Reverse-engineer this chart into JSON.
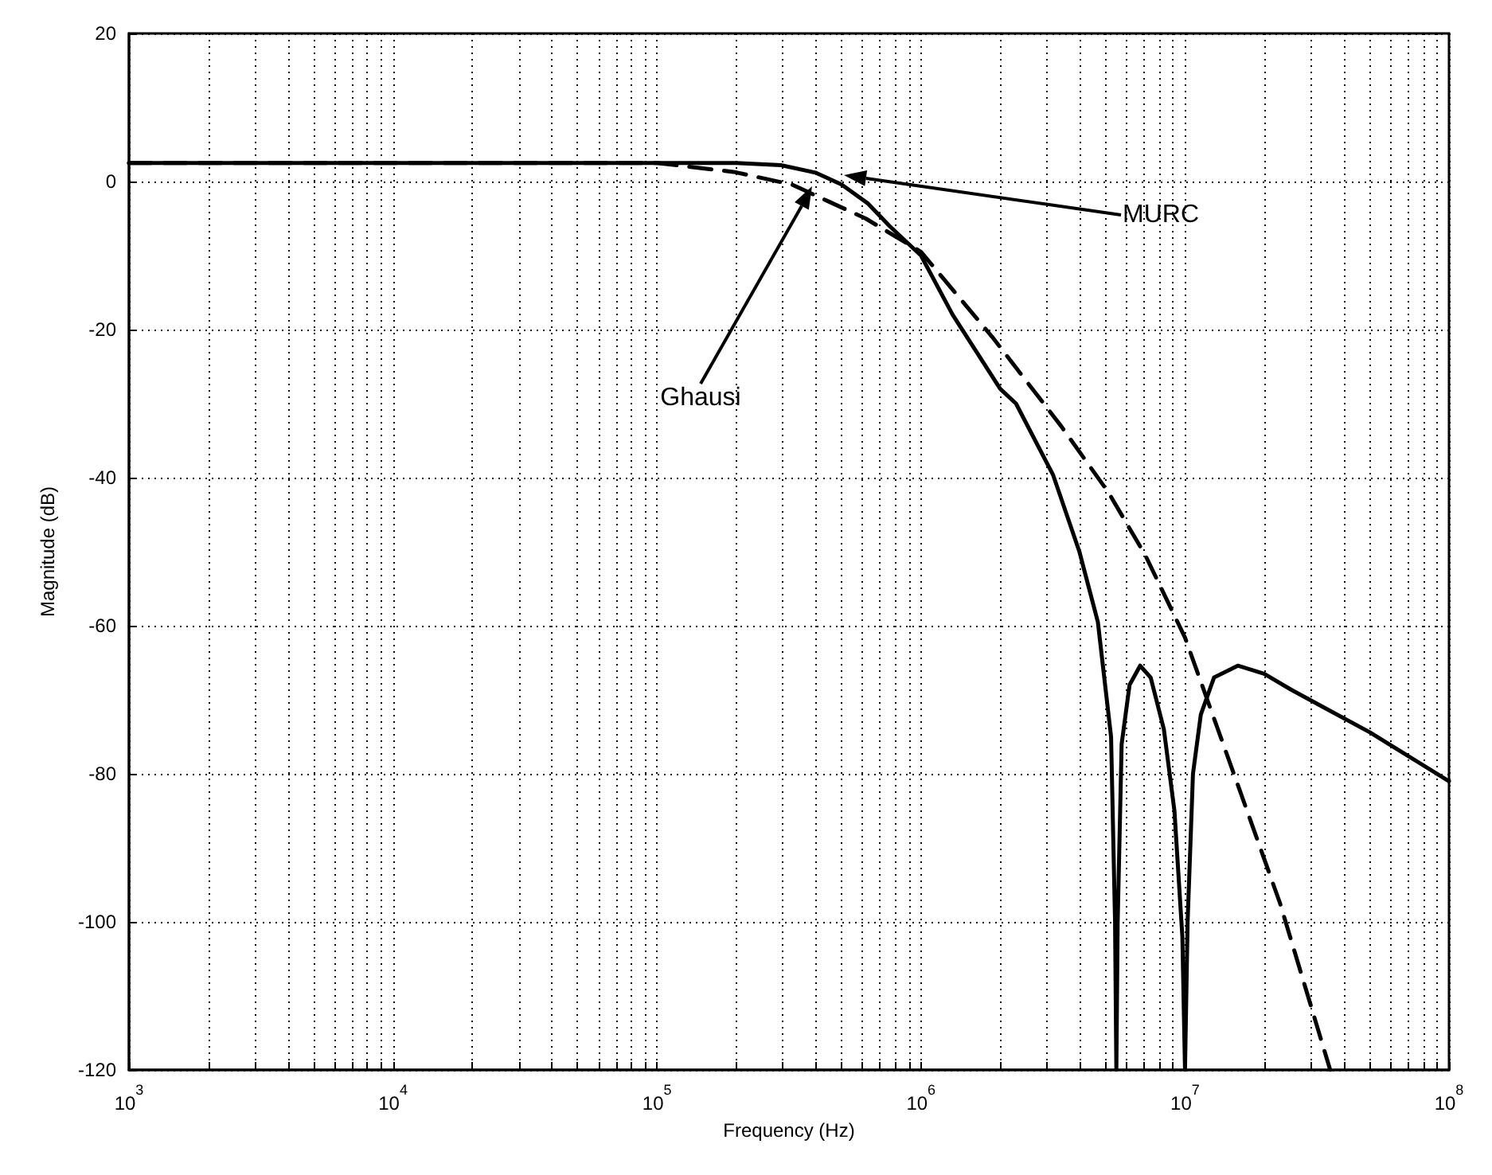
{
  "chart_data": {
    "type": "line",
    "xlabel": "Frequency (Hz)",
    "ylabel": "Magnitude (dB)",
    "log": "x",
    "grid": true,
    "marker": "none",
    "xlim": [
      1000,
      100000000
    ],
    "xticks": [
      {
        "value": 1000,
        "label": "10$^{3}$"
      },
      {
        "value": 2000,
        "label": null
      },
      {
        "value": 3000,
        "label": null
      },
      {
        "value": 4000,
        "label": null
      },
      {
        "value": 5000,
        "label": null
      },
      {
        "value": 6000,
        "label": null
      },
      {
        "value": 7000,
        "label": null
      },
      {
        "value": 8000,
        "label": null
      },
      {
        "value": 9000,
        "label": null
      },
      {
        "value": 10000,
        "label": "10$^{4}$"
      },
      {
        "value": 20000,
        "label": null
      },
      {
        "value": 30000,
        "label": null
      },
      {
        "value": 40000,
        "label": null
      },
      {
        "value": 50000,
        "label": null
      },
      {
        "value": 60000,
        "label": null
      },
      {
        "value": 70000,
        "label": null
      },
      {
        "value": 80000,
        "label": null
      },
      {
        "value": 90000,
        "label": null
      },
      {
        "value": 100000,
        "label": "10$^{5}$"
      },
      {
        "value": 200000,
        "label": null
      },
      {
        "value": 300000,
        "label": null
      },
      {
        "value": 400000,
        "label": null
      },
      {
        "value": 500000,
        "label": null
      },
      {
        "value": 600000,
        "label": null
      },
      {
        "value": 700000,
        "label": null
      },
      {
        "value": 800000,
        "label": null
      },
      {
        "value": 900000,
        "label": null
      },
      {
        "value": 1000000,
        "label": "10$^{6}$"
      },
      {
        "value": 2000000,
        "label": null
      },
      {
        "value": 3000000,
        "label": null
      },
      {
        "value": 4000000,
        "label": null
      },
      {
        "value": 5000000,
        "label": null
      },
      {
        "value": 6000000,
        "label": null
      },
      {
        "value": 7000000,
        "label": null
      },
      {
        "value": 8000000,
        "label": null
      },
      {
        "value": 9000000,
        "label": null
      },
      {
        "value": 10000000,
        "label": "10$^{7}$"
      },
      {
        "value": 20000000,
        "label": null
      },
      {
        "value": 30000000,
        "label": null
      },
      {
        "value": 40000000,
        "label": null
      },
      {
        "value": 50000000,
        "label": null
      },
      {
        "value": 60000000,
        "label": null
      },
      {
        "value": 70000000,
        "label": null
      },
      {
        "value": 80000000,
        "label": null
      },
      {
        "value": 90000000,
        "label": null
      },
      {
        "value": 100000000,
        "label": "10$^{8}$"
      }
    ],
    "ylim": [
      -120,
      20
    ],
    "yticks": [
      -120,
      -100,
      -80,
      -60,
      -40,
      -20,
      0,
      20
    ],
    "series": [
      {
        "color": "#000000",
        "line_style": "solid",
        "x": [
          1000,
          200000,
          295000,
          398000,
          500000,
          631000,
          759000,
          1000000,
          1318000,
          1995000,
          2291000,
          3162000,
          3981000,
          4677000,
          5248000,
          5433000,
          5495000,
          5559000,
          5754000,
          6166000,
          6761000,
          7413000,
          8318000,
          9120000,
          9772000,
          10000000,
          10230000,
          10720000,
          11480000,
          12880000,
          15850000,
          19950000,
          25120000,
          35480000,
          50120000,
          70790000,
          100000000
        ],
        "values": [
          2.5,
          2.5,
          2.2,
          1.2,
          -0.4,
          -3,
          -6,
          -10,
          -18,
          -28,
          -30,
          -39.6,
          -50,
          -59.5,
          -75,
          -100,
          -120,
          -100,
          -76,
          -68,
          -65.4,
          -67,
          -74,
          -85,
          -102,
          -120,
          -100,
          -80,
          -72,
          -67,
          -65.4,
          -66.5,
          -68.6,
          -71.5,
          -74.4,
          -77.7,
          -81
        ]
      },
      {
        "color": "#000000",
        "line_style": "dashed",
        "x": [
          1000,
          100000,
          195000,
          324000,
          447000,
          617000,
          1000000,
          1862000,
          3388000,
          5129000,
          7079000,
          10000000,
          15850000,
          22910000,
          35480000
        ],
        "values": [
          2.5,
          2.5,
          1.3,
          -0.4,
          -2.7,
          -5,
          -9.5,
          -21,
          -33,
          -42,
          -50.5,
          -61.6,
          -81.5,
          -97.5,
          -120
        ]
      }
    ],
    "annotations": [
      "MURC",
      "Ghausi"
    ]
  }
}
